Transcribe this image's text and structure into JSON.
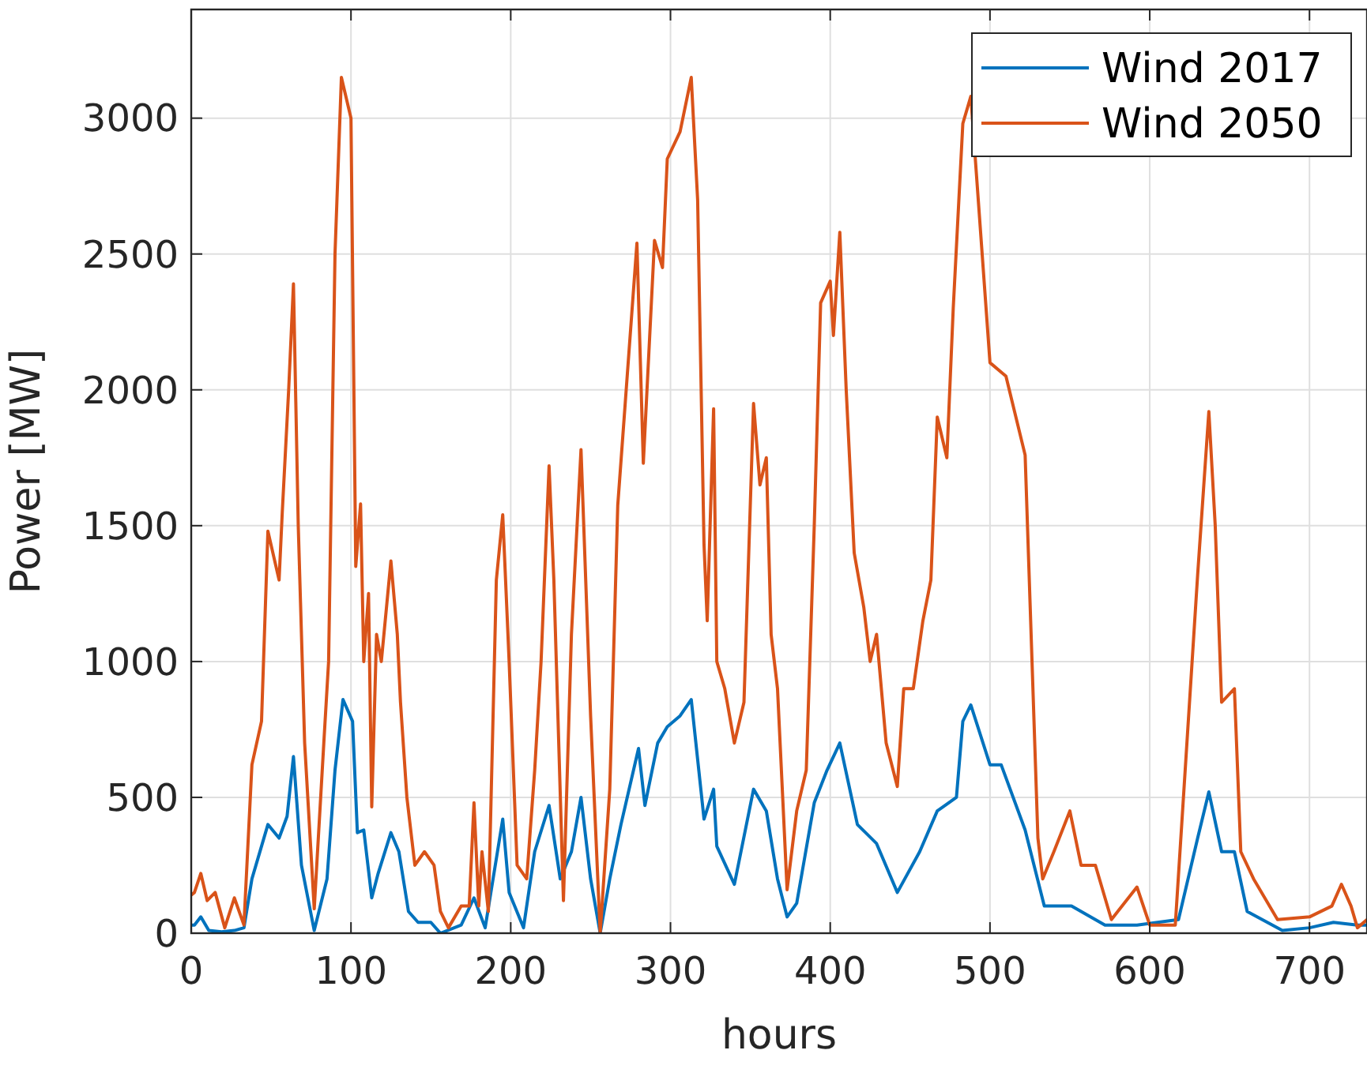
{
  "chart_data": {
    "type": "line",
    "xlabel": "hours",
    "ylabel": "Power [MW]",
    "xlim": [
      0,
      736
    ],
    "ylim": [
      0,
      3400
    ],
    "xticks": [
      0,
      100,
      200,
      300,
      400,
      500,
      600,
      700
    ],
    "yticks": [
      0,
      500,
      1000,
      1500,
      2000,
      2500,
      3000
    ],
    "grid": true,
    "legend": "top right",
    "series": [
      {
        "name": "Wind 2017",
        "color": "#0072bd",
        "x": [
          0,
          2,
          6,
          11,
          19,
          27,
          33,
          38,
          48,
          55,
          60,
          64,
          69,
          77,
          85,
          90,
          95,
          101,
          104,
          108,
          113,
          117,
          125,
          130,
          136,
          142,
          150,
          156,
          169,
          177,
          184,
          195,
          199,
          208,
          215,
          224,
          231,
          238,
          244,
          250,
          256,
          262,
          269,
          280,
          284,
          292,
          298,
          306,
          313,
          321,
          327,
          329,
          340,
          352,
          360,
          367,
          373,
          379,
          390,
          398,
          406,
          417,
          429,
          442,
          456,
          467,
          479,
          483,
          488,
          500,
          507,
          522,
          534,
          551,
          572,
          592,
          618,
          630,
          637,
          645,
          653,
          661,
          683,
          700,
          715,
          730,
          736
        ],
        "values": [
          30,
          30,
          60,
          10,
          5,
          10,
          20,
          200,
          400,
          350,
          430,
          650,
          250,
          10,
          200,
          600,
          860,
          780,
          370,
          380,
          130,
          220,
          370,
          300,
          80,
          40,
          40,
          0,
          30,
          130,
          20,
          420,
          150,
          20,
          300,
          470,
          200,
          300,
          500,
          200,
          0,
          200,
          400,
          680,
          470,
          700,
          760,
          800,
          860,
          420,
          530,
          320,
          180,
          530,
          450,
          200,
          60,
          110,
          480,
          600,
          700,
          400,
          330,
          150,
          300,
          450,
          500,
          780,
          840,
          620,
          620,
          380,
          100,
          100,
          30,
          30,
          50,
          350,
          520,
          300,
          300,
          80,
          10,
          20,
          40,
          30,
          30
        ]
      },
      {
        "name": "Wind 2050",
        "color": "#d95319",
        "x": [
          0,
          2,
          6,
          10,
          15,
          21,
          27,
          33,
          38,
          44,
          48,
          55,
          57,
          61,
          64,
          67,
          71,
          77,
          83,
          86,
          90,
          94,
          100,
          103,
          106,
          108,
          111,
          113,
          116,
          119,
          125,
          129,
          131,
          135,
          140,
          146,
          152,
          156,
          161,
          169,
          174,
          177,
          180,
          182,
          186,
          191,
          195,
          199,
          204,
          210,
          215,
          219,
          224,
          227,
          233,
          238,
          244,
          250,
          256,
          262,
          267,
          279,
          283,
          290,
          295,
          298,
          306,
          313,
          317,
          321,
          323,
          327,
          329,
          334,
          340,
          346,
          352,
          356,
          360,
          363,
          367,
          373,
          379,
          385,
          390,
          394,
          400,
          402,
          406,
          410,
          415,
          421,
          425,
          429,
          435,
          442,
          446,
          452,
          458,
          463,
          467,
          473,
          477,
          483,
          488,
          500,
          510,
          522,
          530,
          533,
          540,
          550,
          557,
          566,
          576,
          592,
          600,
          616,
          630,
          637,
          641,
          645,
          653,
          657,
          665,
          680,
          700,
          714,
          720,
          726,
          730,
          736
        ],
        "values": [
          140,
          150,
          220,
          120,
          150,
          20,
          130,
          30,
          620,
          780,
          1480,
          1300,
          1550,
          2000,
          2390,
          1500,
          700,
          90,
          700,
          1000,
          2500,
          3150,
          3000,
          1350,
          1580,
          1000,
          1250,
          465,
          1100,
          1000,
          1370,
          1100,
          850,
          500,
          250,
          300,
          250,
          80,
          20,
          100,
          100,
          480,
          100,
          300,
          80,
          1300,
          1540,
          1000,
          250,
          200,
          600,
          1000,
          1720,
          1300,
          120,
          1100,
          1780,
          800,
          0,
          530,
          1575,
          2540,
          1730,
          2550,
          2450,
          2850,
          2950,
          3150,
          2700,
          1430,
          1150,
          1930,
          1000,
          900,
          700,
          850,
          1950,
          1650,
          1750,
          1100,
          900,
          160,
          450,
          600,
          1500,
          2320,
          2400,
          2200,
          2580,
          2000,
          1400,
          1200,
          1000,
          1100,
          700,
          540,
          900,
          900,
          1150,
          1300,
          1900,
          1750,
          2300,
          2980,
          3080,
          2100,
          2050,
          1760,
          350,
          200,
          300,
          450,
          250,
          250,
          50,
          170,
          30,
          30,
          1320,
          1920,
          1500,
          850,
          900,
          300,
          200,
          50,
          60,
          100,
          180,
          100,
          20,
          50
        ]
      }
    ]
  }
}
